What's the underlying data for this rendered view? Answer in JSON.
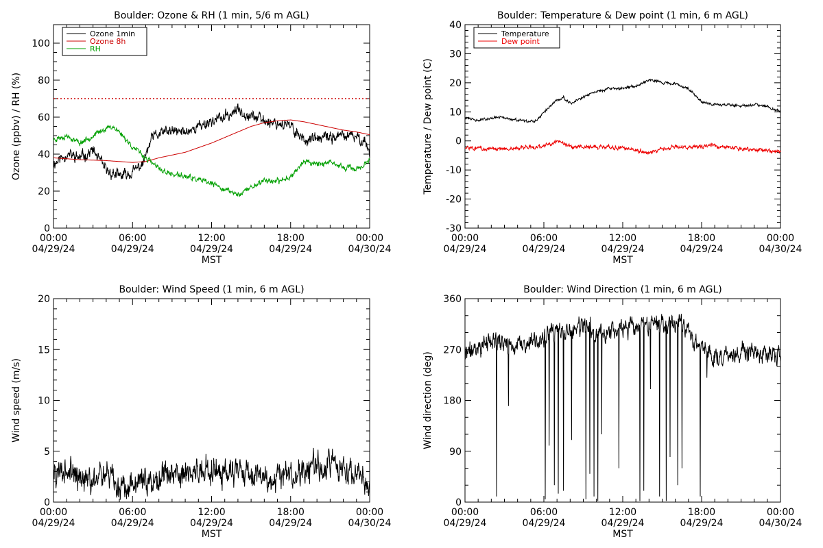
{
  "chart_data": [
    {
      "id": "ozone",
      "type": "line",
      "title": "Boulder: Ozone & RH (1 min, 5/6 m AGL)",
      "xlabel": "MST",
      "ylabel": "Ozone (ppbv) / RH (%)",
      "xlim": [
        0,
        24
      ],
      "ylim": [
        0,
        110
      ],
      "yticks": [
        0,
        20,
        40,
        60,
        80,
        100
      ],
      "yminor": 4,
      "xticks": [
        {
          "x": 0,
          "time": "00:00",
          "date": "04/29/24"
        },
        {
          "x": 6,
          "time": "06:00",
          "date": "04/29/24"
        },
        {
          "x": 12,
          "time": "12:00",
          "date": "04/29/24"
        },
        {
          "x": 18,
          "time": "18:00",
          "date": "04/29/24"
        },
        {
          "x": 24,
          "time": "00:00",
          "date": "04/30/24"
        }
      ],
      "legend_position": "top-left",
      "reference_line": {
        "y": 70,
        "color": "#cc0000",
        "style": "dotted"
      },
      "series": [
        {
          "name": "Ozone 1min",
          "color": "#000000",
          "noise": 2.5,
          "seed": 11,
          "x": [
            0,
            1,
            2,
            3,
            4,
            5,
            6,
            6.8,
            7.5,
            8.5,
            10,
            11,
            12,
            13,
            14,
            15,
            16,
            17,
            18,
            19,
            20,
            21,
            22,
            23,
            23.7,
            24
          ],
          "y": [
            35,
            40,
            38,
            42,
            31,
            28,
            30,
            35,
            49,
            52,
            52,
            55,
            58,
            60,
            64,
            61,
            58,
            57,
            55,
            48,
            48,
            49,
            50,
            49,
            47,
            40
          ]
        },
        {
          "name": "Ozone 8h",
          "color": "#cc0000",
          "noise": 0,
          "seed": 0,
          "x": [
            0,
            2,
            4,
            6,
            7,
            8,
            10,
            12,
            14,
            15,
            16,
            17,
            18,
            19,
            20,
            21,
            22,
            23,
            24
          ],
          "y": [
            38,
            37,
            36.5,
            35.5,
            36,
            38,
            41,
            46,
            52,
            55,
            57,
            58,
            58.5,
            57.5,
            56,
            54.5,
            53,
            52,
            50.5
          ]
        },
        {
          "name": "RH",
          "color": "#00a000",
          "noise": 1.2,
          "seed": 23,
          "x": [
            0,
            1,
            2,
            3,
            4,
            4.5,
            5,
            6,
            7,
            8,
            9,
            10,
            11,
            12,
            13,
            14,
            15,
            16,
            17,
            18,
            19,
            20,
            21,
            22,
            23,
            24
          ],
          "y": [
            48,
            50,
            46,
            50,
            54,
            55,
            52,
            44,
            38,
            32,
            29,
            28,
            26,
            24,
            21,
            18,
            22,
            26,
            25,
            28,
            36,
            35,
            35,
            33,
            32,
            36
          ]
        }
      ]
    },
    {
      "id": "temperature",
      "type": "line",
      "title": "Boulder: Temperature & Dew point (1 min, 6 m AGL)",
      "xlabel": "MST",
      "ylabel": "Temperature / Dew point (C)",
      "xlim": [
        0,
        24
      ],
      "ylim": [
        -30,
        40
      ],
      "yticks": [
        -30,
        -20,
        -10,
        0,
        10,
        20,
        30,
        40
      ],
      "yminor": 5,
      "xticks": [
        {
          "x": 0,
          "time": "00:00",
          "date": "04/29/24"
        },
        {
          "x": 6,
          "time": "06:00",
          "date": "04/29/24"
        },
        {
          "x": 12,
          "time": "12:00",
          "date": "04/29/24"
        },
        {
          "x": 18,
          "time": "18:00",
          "date": "04/29/24"
        },
        {
          "x": 24,
          "time": "00:00",
          "date": "04/30/24"
        }
      ],
      "legend_position": "top-left",
      "series": [
        {
          "name": "Temperature",
          "color": "#000000",
          "noise": 0.4,
          "seed": 31,
          "x": [
            0,
            1,
            2,
            3,
            4,
            5,
            5.5,
            6,
            7,
            7.5,
            8,
            9,
            10,
            11,
            12,
            13,
            14,
            14.5,
            15,
            16,
            17,
            18,
            19,
            20,
            21,
            22,
            23,
            24
          ],
          "y": [
            8,
            7,
            8,
            8,
            7,
            6.5,
            7,
            10,
            14,
            15,
            13,
            15,
            17,
            18,
            18,
            19,
            21,
            21,
            20,
            19.5,
            18,
            13.5,
            12.5,
            12.5,
            12,
            12.5,
            12,
            10
          ]
        },
        {
          "name": "Dew point",
          "color": "#ee0000",
          "noise": 0.6,
          "seed": 43,
          "x": [
            0,
            2,
            4,
            6,
            7,
            8,
            10,
            12,
            14,
            15,
            16,
            18,
            19,
            20,
            22,
            24
          ],
          "y": [
            -2,
            -3,
            -2.5,
            -2,
            0,
            -2,
            -2,
            -2.5,
            -4,
            -3,
            -2,
            -2,
            -1.5,
            -2.5,
            -3,
            -3.5
          ]
        }
      ]
    },
    {
      "id": "windspeed",
      "type": "line",
      "title": "Boulder: Wind Speed (1 min, 6 m AGL)",
      "xlabel": "MST",
      "ylabel": "Wind speed (m/s)",
      "xlim": [
        0,
        24
      ],
      "ylim": [
        0,
        20
      ],
      "yticks": [
        0,
        5,
        10,
        15,
        20
      ],
      "yminor": 5,
      "xticks": [
        {
          "x": 0,
          "time": "00:00",
          "date": "04/29/24"
        },
        {
          "x": 6,
          "time": "06:00",
          "date": "04/29/24"
        },
        {
          "x": 12,
          "time": "12:00",
          "date": "04/29/24"
        },
        {
          "x": 18,
          "time": "18:00",
          "date": "04/29/24"
        },
        {
          "x": 24,
          "time": "00:00",
          "date": "04/30/24"
        }
      ],
      "series": [
        {
          "name": "",
          "color": "#000000",
          "noise": 1.1,
          "seed": 57,
          "x": [
            0,
            1,
            2,
            3,
            4,
            5,
            6,
            7,
            8,
            9,
            10,
            11,
            12,
            13,
            14,
            15,
            16,
            17,
            18,
            19,
            20,
            21,
            22,
            23,
            24
          ],
          "y": [
            2.5,
            3.5,
            2,
            2,
            2.5,
            1.5,
            2,
            2,
            2.5,
            3,
            3,
            3,
            3.5,
            3,
            3,
            3,
            2.5,
            2.5,
            2.5,
            3,
            3.5,
            4,
            3,
            2.5,
            1.5
          ]
        }
      ]
    },
    {
      "id": "winddir",
      "type": "line",
      "title": "Boulder: Wind Direction (1 min, 6 m AGL)",
      "xlabel": "MST",
      "ylabel": "Wind direction (deg)",
      "xlim": [
        0,
        24
      ],
      "ylim": [
        0,
        360
      ],
      "yticks": [
        0,
        90,
        180,
        270,
        360
      ],
      "yminor": 3,
      "xticks": [
        {
          "x": 0,
          "time": "00:00",
          "date": "04/29/24"
        },
        {
          "x": 6,
          "time": "06:00",
          "date": "04/29/24"
        },
        {
          "x": 12,
          "time": "12:00",
          "date": "04/29/24"
        },
        {
          "x": 18,
          "time": "18:00",
          "date": "04/29/24"
        },
        {
          "x": 24,
          "time": "00:00",
          "date": "04/30/24"
        }
      ],
      "series": [
        {
          "name": "",
          "color": "#000000",
          "noise": 14,
          "seed": 71,
          "x": [
            0,
            1,
            2,
            3,
            4,
            5,
            6,
            7,
            8,
            9,
            10,
            11,
            12,
            13,
            14,
            15,
            16,
            17,
            17.5,
            18,
            18.5,
            19,
            20,
            21,
            22,
            23,
            24
          ],
          "y": [
            260,
            275,
            285,
            280,
            275,
            280,
            290,
            300,
            300,
            310,
            300,
            300,
            310,
            305,
            310,
            320,
            320,
            310,
            280,
            275,
            265,
            262,
            260,
            262,
            262,
            258,
            258
          ],
          "drops": [
            {
              "x": 2.4,
              "y": 10
            },
            {
              "x": 3.3,
              "y": 170
            },
            {
              "x": 6.1,
              "y": 5
            },
            {
              "x": 6.4,
              "y": 100
            },
            {
              "x": 6.8,
              "y": 30
            },
            {
              "x": 7.1,
              "y": 15
            },
            {
              "x": 7.5,
              "y": 20
            },
            {
              "x": 8.1,
              "y": 110
            },
            {
              "x": 9.2,
              "y": 5
            },
            {
              "x": 9.5,
              "y": 50
            },
            {
              "x": 9.8,
              "y": 10
            },
            {
              "x": 10.1,
              "y": 2
            },
            {
              "x": 10.4,
              "y": 120
            },
            {
              "x": 11.7,
              "y": 60
            },
            {
              "x": 13.3,
              "y": 2
            },
            {
              "x": 13.6,
              "y": 20
            },
            {
              "x": 14.1,
              "y": 200
            },
            {
              "x": 14.8,
              "y": 10
            },
            {
              "x": 15.3,
              "y": 2
            },
            {
              "x": 15.6,
              "y": 80
            },
            {
              "x": 16.2,
              "y": 30
            },
            {
              "x": 16.5,
              "y": 60
            },
            {
              "x": 17.9,
              "y": 10
            },
            {
              "x": 18.4,
              "y": 220
            }
          ]
        }
      ]
    }
  ]
}
